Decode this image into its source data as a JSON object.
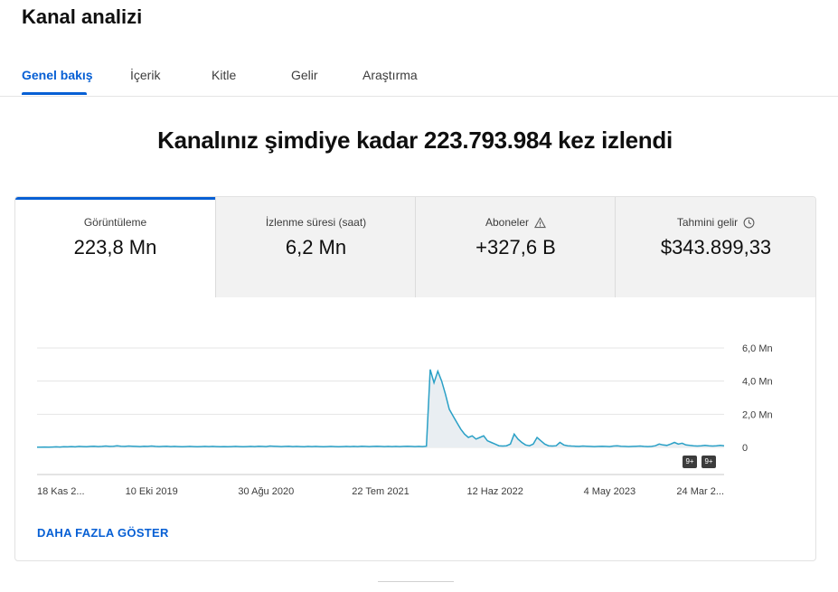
{
  "page": {
    "title": "Kanal analizi"
  },
  "tabs": [
    {
      "label": "Genel bakış",
      "active": true
    },
    {
      "label": "İçerik",
      "active": false
    },
    {
      "label": "Kitle",
      "active": false
    },
    {
      "label": "Gelir",
      "active": false
    },
    {
      "label": "Araştırma",
      "active": false
    }
  ],
  "headline": "Kanalınız şimdiye kadar 223.793.984 kez izlendi",
  "metrics": [
    {
      "label": "Görüntüleme",
      "value": "223,8 Mn",
      "icon": ""
    },
    {
      "label": "İzlenme süresi (saat)",
      "value": "6,2 Mn",
      "icon": ""
    },
    {
      "label": "Aboneler",
      "value": "+327,6 B",
      "icon": "warning-icon"
    },
    {
      "label": "Tahmini gelir",
      "value": "$343.899,33",
      "icon": "clock-icon"
    }
  ],
  "chart_data": {
    "type": "line",
    "x_tick_labels": [
      "18 Kas 2...",
      "10 Eki 2019",
      "30 Ağu 2020",
      "22 Tem 2021",
      "12 Haz 2022",
      "4 May 2023",
      "24 Mar 2..."
    ],
    "y_tick_labels": [
      "6,0 Mn",
      "4,0 Mn",
      "2,0 Mn",
      "0"
    ],
    "ylim": [
      0,
      6000000
    ],
    "y_unit_max": 6.0,
    "series": [
      {
        "values_mn": [
          0.01,
          0.01,
          0.02,
          0.01,
          0.02,
          0.03,
          0.02,
          0.04,
          0.03,
          0.05,
          0.03,
          0.06,
          0.05,
          0.04,
          0.06,
          0.07,
          0.05,
          0.06,
          0.08,
          0.06,
          0.07,
          0.09,
          0.07,
          0.06,
          0.08,
          0.07,
          0.06,
          0.05,
          0.07,
          0.06,
          0.08,
          0.06,
          0.05,
          0.06,
          0.07,
          0.05,
          0.06,
          0.05,
          0.04,
          0.05,
          0.06,
          0.05,
          0.04,
          0.05,
          0.06,
          0.05,
          0.06,
          0.05,
          0.04,
          0.05,
          0.04,
          0.05,
          0.06,
          0.05,
          0.04,
          0.05,
          0.06,
          0.05,
          0.07,
          0.06,
          0.05,
          0.08,
          0.07,
          0.06,
          0.05,
          0.06,
          0.07,
          0.05,
          0.06,
          0.05,
          0.04,
          0.06,
          0.05,
          0.06,
          0.05,
          0.04,
          0.05,
          0.06,
          0.05,
          0.04,
          0.05,
          0.06,
          0.05,
          0.06,
          0.05,
          0.07,
          0.06,
          0.05,
          0.06,
          0.07,
          0.06,
          0.05,
          0.06,
          0.05,
          0.06,
          0.05,
          0.06,
          0.07,
          0.06,
          0.05,
          0.06,
          0.05,
          0.07,
          4.7,
          3.9,
          4.6,
          4.0,
          3.2,
          2.3,
          1.9,
          1.5,
          1.1,
          0.8,
          0.6,
          0.7,
          0.5,
          0.6,
          0.7,
          0.4,
          0.3,
          0.2,
          0.1,
          0.08,
          0.1,
          0.2,
          0.8,
          0.5,
          0.3,
          0.15,
          0.1,
          0.2,
          0.6,
          0.4,
          0.2,
          0.1,
          0.08,
          0.1,
          0.3,
          0.15,
          0.1,
          0.08,
          0.07,
          0.06,
          0.08,
          0.07,
          0.06,
          0.05,
          0.06,
          0.07,
          0.06,
          0.05,
          0.08,
          0.1,
          0.07,
          0.06,
          0.05,
          0.06,
          0.07,
          0.08,
          0.06,
          0.05,
          0.06,
          0.1,
          0.2,
          0.15,
          0.12,
          0.2,
          0.3,
          0.2,
          0.25,
          0.15,
          0.12,
          0.1,
          0.08,
          0.1,
          0.12,
          0.09,
          0.08,
          0.1,
          0.12,
          0.1
        ]
      }
    ],
    "badges": [
      "9+",
      "9+"
    ],
    "line_color": "#2aa0c6"
  },
  "actions": {
    "show_more": "DAHA FAZLA GÖSTER"
  }
}
